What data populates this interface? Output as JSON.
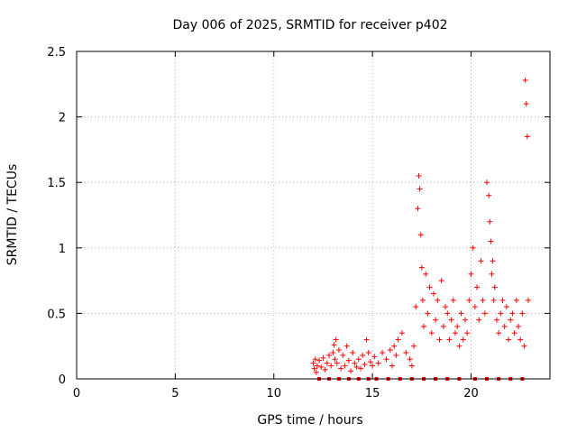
{
  "chart_data": {
    "type": "scatter",
    "title": "Day 006 of 2025, SRMTID for receiver p402",
    "xlabel": "GPS time / hours",
    "ylabel": "SRMTID / TECUs",
    "xlim": [
      0,
      24
    ],
    "ylim": [
      0,
      2.5
    ],
    "x_ticks": [
      0,
      5,
      10,
      15,
      20
    ],
    "x_tick_labels": [
      "0",
      "5",
      "10",
      "15",
      "20"
    ],
    "y_ticks": [
      0,
      0.5,
      1,
      1.5,
      2,
      2.5
    ],
    "y_tick_labels": [
      "0",
      "0.5",
      "1",
      "1.5",
      "2",
      "2.5"
    ],
    "grid": true,
    "marker": "+",
    "marker_color": "#ff0000",
    "series": [
      {
        "name": "SRMTID",
        "x": [
          12.0,
          12.05,
          12.1,
          12.15,
          12.2,
          12.3,
          12.4,
          12.5,
          12.6,
          12.7,
          12.8,
          12.9,
          13.0,
          13.05,
          13.1,
          13.15,
          13.2,
          13.3,
          13.4,
          13.5,
          13.6,
          13.7,
          13.8,
          13.9,
          14.0,
          14.1,
          14.2,
          14.3,
          14.4,
          14.5,
          14.6,
          14.7,
          14.8,
          14.9,
          15.0,
          15.1,
          15.3,
          15.5,
          15.7,
          15.9,
          16.0,
          16.1,
          16.2,
          16.3,
          16.5,
          16.7,
          16.9,
          17.0,
          17.1,
          17.2,
          17.3,
          17.35,
          17.4,
          17.45,
          17.5,
          17.55,
          17.6,
          17.7,
          17.8,
          17.9,
          18.0,
          18.1,
          18.2,
          18.3,
          18.4,
          18.5,
          18.6,
          18.7,
          18.8,
          18.9,
          19.0,
          19.1,
          19.2,
          19.3,
          19.4,
          19.5,
          19.6,
          19.7,
          19.8,
          19.9,
          20.0,
          20.1,
          20.2,
          20.3,
          20.4,
          20.5,
          20.6,
          20.7,
          20.8,
          20.9,
          20.95,
          21.0,
          21.05,
          21.1,
          21.15,
          21.2,
          21.3,
          21.4,
          21.5,
          21.6,
          21.7,
          21.8,
          21.9,
          22.0,
          22.1,
          22.2,
          22.3,
          22.4,
          22.5,
          22.6,
          22.7,
          22.75,
          22.8,
          22.85,
          22.9,
          12.3,
          12.8,
          13.3,
          13.8,
          14.3,
          14.8,
          15.2,
          15.8,
          16.4,
          17.0,
          17.6,
          18.2,
          18.8,
          19.4,
          20.2,
          20.8,
          21.4,
          22.0,
          22.6
        ],
        "y": [
          0.12,
          0.08,
          0.15,
          0.05,
          0.1,
          0.14,
          0.09,
          0.16,
          0.07,
          0.12,
          0.18,
          0.1,
          0.2,
          0.26,
          0.15,
          0.3,
          0.12,
          0.22,
          0.08,
          0.18,
          0.1,
          0.25,
          0.14,
          0.06,
          0.2,
          0.12,
          0.09,
          0.15,
          0.08,
          0.18,
          0.11,
          0.3,
          0.2,
          0.13,
          0.1,
          0.17,
          0.12,
          0.2,
          0.15,
          0.22,
          0.1,
          0.25,
          0.18,
          0.3,
          0.35,
          0.2,
          0.15,
          0.1,
          0.25,
          0.55,
          1.3,
          1.55,
          1.45,
          1.1,
          0.85,
          0.6,
          0.4,
          0.8,
          0.5,
          0.7,
          0.35,
          0.65,
          0.45,
          0.6,
          0.3,
          0.75,
          0.4,
          0.55,
          0.5,
          0.3,
          0.45,
          0.6,
          0.35,
          0.4,
          0.25,
          0.5,
          0.3,
          0.45,
          0.35,
          0.6,
          0.8,
          1.0,
          0.55,
          0.7,
          0.45,
          0.9,
          0.6,
          0.5,
          1.5,
          1.4,
          1.2,
          1.05,
          0.8,
          0.9,
          0.6,
          0.7,
          0.45,
          0.35,
          0.5,
          0.6,
          0.4,
          0.55,
          0.3,
          0.45,
          0.5,
          0.35,
          0.6,
          0.4,
          0.3,
          0.5,
          0.25,
          2.28,
          2.1,
          1.85,
          0.6,
          0.0,
          0.0,
          0.0,
          0.0,
          0.0,
          0.0,
          0.0,
          0.0,
          0.0,
          0.0,
          0.0,
          0.0,
          0.0,
          0.0,
          0.0,
          0.0,
          0.0,
          0.0,
          0.0
        ]
      }
    ]
  }
}
